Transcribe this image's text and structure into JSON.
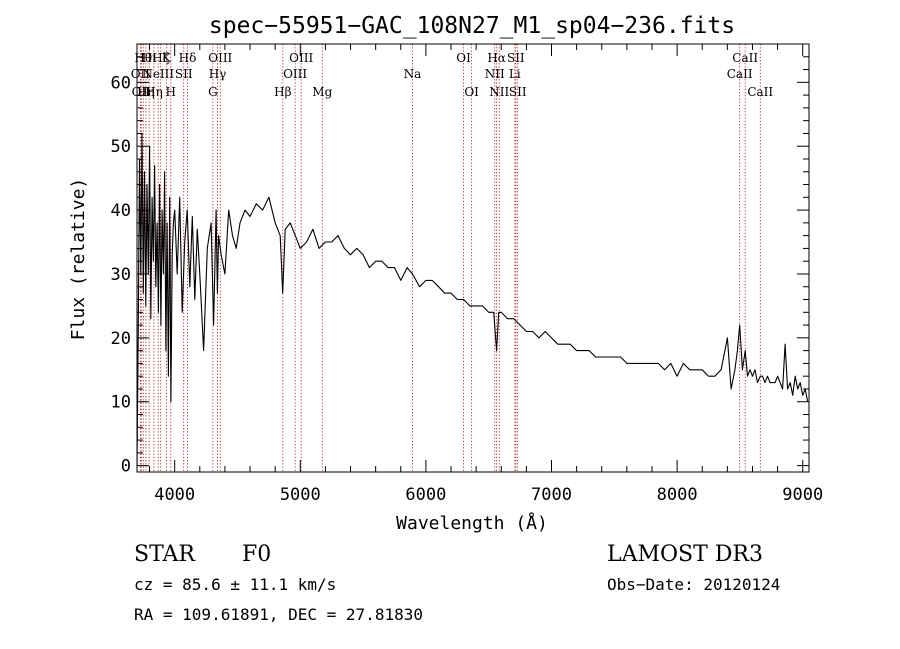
{
  "chart_data": {
    "type": "line",
    "title": "spec−55951−GAC_108N27_M1_sp04−236.fits",
    "xlabel": "Wavelength (Å)",
    "ylabel": "Flux (relative)",
    "xlim": [
      3700,
      9050
    ],
    "ylim": [
      -1,
      66
    ],
    "xticks": [
      4000,
      5000,
      6000,
      7000,
      8000,
      9000
    ],
    "xtick_labels": [
      "4000",
      "5000",
      "6000",
      "7000",
      "8000",
      "9000"
    ],
    "yticks": [
      0,
      10,
      20,
      30,
      40,
      50,
      60
    ],
    "ytick_labels": [
      "0",
      "10",
      "20",
      "30",
      "40",
      "50",
      "60"
    ],
    "grid": false,
    "legend": "none",
    "series": [
      {
        "name": "spectrum",
        "x": [
          3700,
          3710,
          3720,
          3730,
          3740,
          3750,
          3760,
          3770,
          3780,
          3790,
          3800,
          3810,
          3820,
          3830,
          3840,
          3850,
          3860,
          3870,
          3880,
          3890,
          3900,
          3910,
          3920,
          3930,
          3940,
          3950,
          3960,
          3970,
          3980,
          3990,
          4000,
          4020,
          4040,
          4060,
          4080,
          4100,
          4120,
          4140,
          4160,
          4180,
          4200,
          4230,
          4260,
          4290,
          4310,
          4330,
          4340,
          4350,
          4370,
          4400,
          4430,
          4460,
          4490,
          4520,
          4560,
          4600,
          4650,
          4700,
          4750,
          4800,
          4840,
          4860,
          4880,
          4920,
          4960,
          5000,
          5050,
          5100,
          5150,
          5200,
          5250,
          5300,
          5350,
          5400,
          5450,
          5500,
          5550,
          5600,
          5650,
          5700,
          5750,
          5800,
          5850,
          5893,
          5950,
          6000,
          6050,
          6100,
          6150,
          6200,
          6250,
          6300,
          6350,
          6400,
          6450,
          6500,
          6540,
          6563,
          6580,
          6600,
          6650,
          6700,
          6750,
          6800,
          6850,
          6900,
          6950,
          7000,
          7050,
          7100,
          7150,
          7200,
          7250,
          7300,
          7350,
          7400,
          7450,
          7500,
          7550,
          7600,
          7650,
          7700,
          7750,
          7800,
          7850,
          7900,
          7950,
          8000,
          8050,
          8100,
          8150,
          8200,
          8250,
          8300,
          8350,
          8400,
          8430,
          8460,
          8480,
          8498,
          8520,
          8542,
          8560,
          8580,
          8600,
          8620,
          8640,
          8662,
          8680,
          8700,
          8720,
          8740,
          8760,
          8780,
          8800,
          8820,
          8840,
          8860,
          8880,
          8900,
          8920,
          8940,
          8960,
          8980,
          9000,
          9020,
          9040
        ],
        "y": [
          0,
          22,
          48,
          30,
          52,
          27,
          46,
          25,
          44,
          30,
          50,
          23,
          42,
          32,
          47,
          28,
          38,
          24,
          44,
          22,
          40,
          30,
          46,
          18,
          38,
          14,
          42,
          10,
          33,
          38,
          40,
          30,
          42,
          24,
          35,
          40,
          28,
          39,
          26,
          37,
          30,
          18,
          34,
          38,
          22,
          40,
          27,
          36,
          33,
          30,
          40,
          36,
          34,
          38,
          40,
          39,
          41,
          40,
          42,
          38,
          36,
          27,
          37,
          38,
          36,
          34,
          35,
          37,
          34,
          35,
          35,
          36,
          34,
          33,
          34,
          33,
          31,
          32,
          32,
          31,
          31,
          29,
          31,
          30,
          28,
          29,
          29,
          28,
          27,
          27,
          26,
          26,
          25,
          25,
          25,
          24,
          24,
          18,
          24,
          24,
          23,
          23,
          22,
          21,
          21,
          20,
          21,
          20,
          19,
          19,
          19,
          18,
          18,
          18,
          17,
          17,
          17,
          17,
          17,
          16,
          16,
          16,
          16,
          16,
          16,
          15,
          16,
          14,
          16,
          15,
          15,
          15,
          14,
          14,
          15,
          20,
          12,
          15,
          18,
          22,
          15,
          18,
          14,
          15,
          14,
          15,
          13,
          14,
          14,
          13,
          14,
          13,
          13,
          13,
          14,
          13,
          12,
          19,
          12,
          13,
          11,
          14,
          12,
          13,
          11,
          12,
          10
        ]
      }
    ],
    "annotations": {
      "lines": [
        {
          "wave": 3727,
          "label": "OII",
          "row": 2
        },
        {
          "wave": 3734,
          "label": "OII",
          "row": 3
        },
        {
          "wave": 3750,
          "label": "Hθ",
          "row": 1
        },
        {
          "wave": 3771,
          "label": "Hη",
          "row": 3
        },
        {
          "wave": 3797,
          "label": "Hι",
          "row": 1
        },
        {
          "wave": 3835,
          "label": "Hη",
          "row": 3
        },
        {
          "wave": 3869,
          "label": "NeIII",
          "row": 2
        },
        {
          "wave": 3889,
          "label": "Hζ",
          "row": 1
        },
        {
          "wave": 3934,
          "label": "K",
          "row": 1
        },
        {
          "wave": 3969,
          "label": "H",
          "row": 3
        },
        {
          "wave": 4072,
          "label": "SII",
          "row": 2
        },
        {
          "wave": 4102,
          "label": "Hδ",
          "row": 1
        },
        {
          "wave": 4304,
          "label": "G",
          "row": 3
        },
        {
          "wave": 4341,
          "label": "Hγ",
          "row": 2
        },
        {
          "wave": 4363,
          "label": "OIII",
          "row": 1
        },
        {
          "wave": 4861,
          "label": "Hβ",
          "row": 3
        },
        {
          "wave": 4959,
          "label": "OIII",
          "row": 2
        },
        {
          "wave": 5007,
          "label": "OIII",
          "row": 1
        },
        {
          "wave": 5175,
          "label": "Mg",
          "row": 3
        },
        {
          "wave": 5893,
          "label": "Na",
          "row": 2
        },
        {
          "wave": 6300,
          "label": "OI",
          "row": 1
        },
        {
          "wave": 6364,
          "label": "OI",
          "row": 3
        },
        {
          "wave": 6548,
          "label": "NII",
          "row": 2
        },
        {
          "wave": 6563,
          "label": "Hα",
          "row": 1
        },
        {
          "wave": 6584,
          "label": "NII",
          "row": 3
        },
        {
          "wave": 6708,
          "label": "Li",
          "row": 2
        },
        {
          "wave": 6716,
          "label": "SII",
          "row": 1
        },
        {
          "wave": 6731,
          "label": "SII",
          "row": 3
        },
        {
          "wave": 8498,
          "label": "CaII",
          "row": 2
        },
        {
          "wave": 8542,
          "label": "CaII",
          "row": 1
        },
        {
          "wave": 8662,
          "label": "CaII",
          "row": 3
        }
      ]
    }
  },
  "info": {
    "class_label": "STAR",
    "subclass_label": "F0",
    "cz_text": "cz = 85.6 ± 11.1 km/s",
    "coord_text": "RA = 109.61891, DEC =  27.81830",
    "survey_label": "LAMOST DR3",
    "obs_date_text": "Obs−Date: 20120124"
  }
}
